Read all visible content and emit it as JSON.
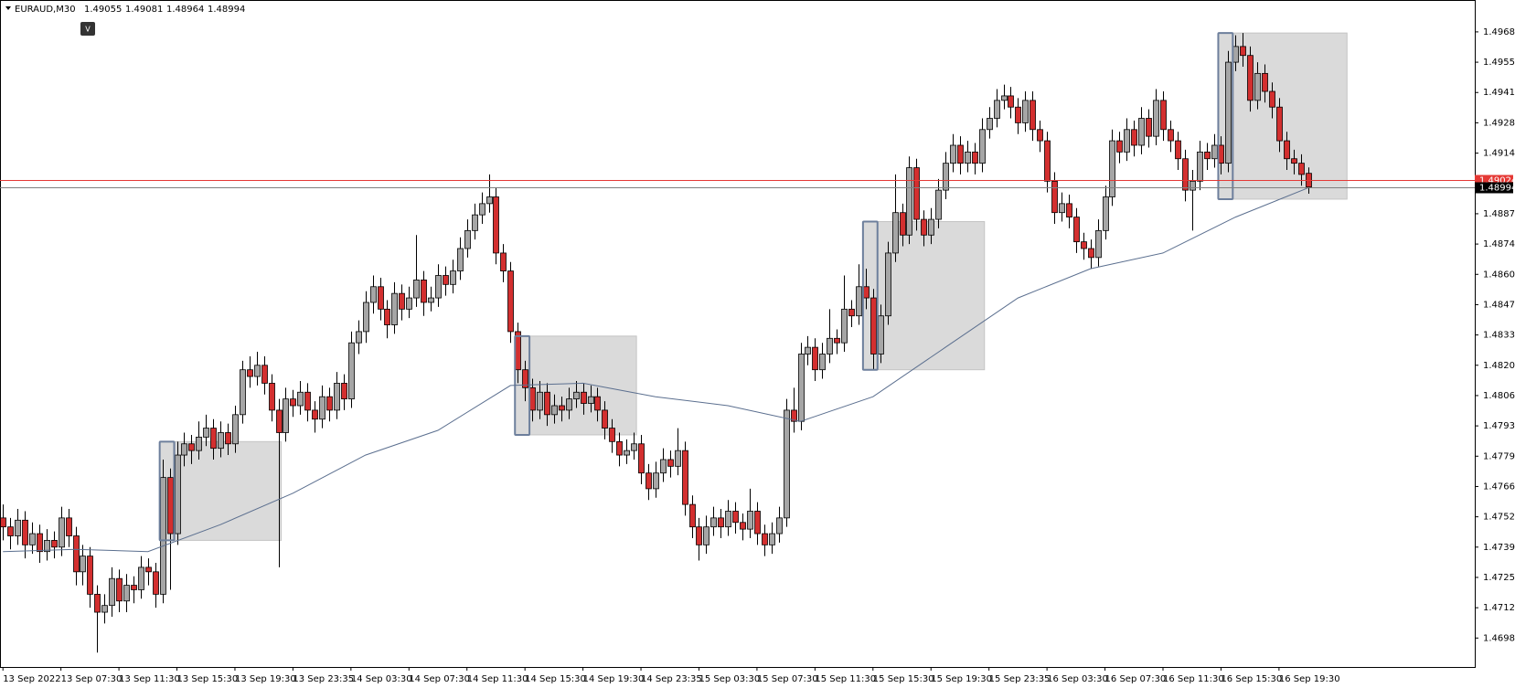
{
  "toolbar": {
    "button": "V"
  },
  "chart_data": {
    "type": "candlestick",
    "title": "EURAUD,M30",
    "ylim": [
      1.46856,
      1.49823
    ],
    "yticks": [
      1.49685,
      {
        "value": 1.4955,
        "label": "1.49550"
      },
      1.49415,
      {
        "value": 1.4928,
        "label": "1.49280"
      },
      1.49145,
      1.48875,
      {
        "value": 1.4874,
        "label": "1.48740"
      },
      1.48605,
      {
        "value": 1.4847,
        "label": "1.48470"
      },
      1.48335,
      {
        "value": 1.482,
        "label": "1.48200"
      },
      1.48065,
      {
        "value": 1.4793,
        "label": "1.47930"
      },
      1.47795,
      {
        "value": 1.4766,
        "label": "1.47660"
      },
      1.47525,
      {
        "value": 1.4739,
        "label": "1.47390"
      },
      1.47255,
      {
        "value": 1.4712,
        "label": "1.47120"
      },
      1.46985
    ],
    "xticks": [
      {
        "value": 0,
        "label": "13 Sep 2022"
      },
      {
        "value": 8,
        "label": "13 Sep 07:30"
      },
      {
        "value": 16,
        "label": "13 Sep 11:30"
      },
      {
        "value": 24,
        "label": "13 Sep 15:30"
      },
      {
        "value": 32,
        "label": "13 Sep 19:30"
      },
      {
        "value": 40,
        "label": "13 Sep 23:35"
      },
      {
        "value": 48,
        "label": "14 Sep 03:30"
      },
      {
        "value": 56,
        "label": "14 Sep 07:30"
      },
      {
        "value": 64,
        "label": "14 Sep 11:30"
      },
      {
        "value": 72,
        "label": "14 Sep 15:30"
      },
      {
        "value": 80,
        "label": "14 Sep 19:30"
      },
      {
        "value": 88,
        "label": "14 Sep 23:35"
      },
      {
        "value": 96,
        "label": "15 Sep 03:30"
      },
      {
        "value": 104,
        "label": "15 Sep 07:30"
      },
      {
        "value": 112,
        "label": "15 Sep 11:30"
      },
      {
        "value": 120,
        "label": "15 Sep 15:30"
      },
      {
        "value": 128,
        "label": "15 Sep 19:30"
      },
      {
        "value": 136,
        "label": "15 Sep 23:35"
      },
      {
        "value": 144,
        "label": "16 Sep 03:30"
      },
      {
        "value": 152,
        "label": "16 Sep 07:30"
      },
      {
        "value": 160,
        "label": "16 Sep 11:30"
      },
      {
        "value": 168,
        "label": "16 Sep 15:30"
      },
      {
        "value": 176,
        "label": "16 Sep 19:30"
      }
    ],
    "up_color": "#a6a6a6",
    "down_color": "#d32f2f",
    "candles": [
      [
        1.4752,
        1.4758,
        1.4742,
        1.4748
      ],
      [
        1.4748,
        1.4752,
        1.4738,
        1.4744
      ],
      [
        1.4744,
        1.4756,
        1.474,
        1.4751
      ],
      [
        1.4751,
        1.4755,
        1.4734,
        1.474
      ],
      [
        1.474,
        1.475,
        1.4736,
        1.4745
      ],
      [
        1.4745,
        1.4749,
        1.4732,
        1.4737
      ],
      [
        1.4737,
        1.4747,
        1.4733,
        1.4742
      ],
      [
        1.4742,
        1.4746,
        1.4734,
        1.4739
      ],
      [
        1.4739,
        1.4757,
        1.4735,
        1.4752
      ],
      [
        1.4752,
        1.4756,
        1.4739,
        1.4744
      ],
      [
        1.4744,
        1.4748,
        1.4722,
        1.4728
      ],
      [
        1.4728,
        1.474,
        1.4722,
        1.4735
      ],
      [
        1.4735,
        1.4739,
        1.4712,
        1.4718
      ],
      [
        1.4718,
        1.4722,
        1.4692,
        1.471
      ],
      [
        1.471,
        1.4718,
        1.4705,
        1.4713
      ],
      [
        1.4713,
        1.473,
        1.4708,
        1.4725
      ],
      [
        1.4725,
        1.4729,
        1.471,
        1.4715
      ],
      [
        1.4715,
        1.4727,
        1.471,
        1.4722
      ],
      [
        1.4722,
        1.4726,
        1.4714,
        1.472
      ],
      [
        1.472,
        1.4735,
        1.4716,
        1.473
      ],
      [
        1.473,
        1.4734,
        1.4722,
        1.4728
      ],
      [
        1.4728,
        1.4732,
        1.4712,
        1.4718
      ],
      [
        1.4718,
        1.4778,
        1.4714,
        1.477
      ],
      [
        1.477,
        1.4774,
        1.472,
        1.4745
      ],
      [
        1.4745,
        1.4786,
        1.474,
        1.478
      ],
      [
        1.478,
        1.479,
        1.4775,
        1.4785
      ],
      [
        1.4785,
        1.4789,
        1.4776,
        1.4782
      ],
      [
        1.4782,
        1.4795,
        1.4778,
        1.4788
      ],
      [
        1.4788,
        1.4798,
        1.4784,
        1.4792
      ],
      [
        1.4792,
        1.4796,
        1.4778,
        1.4783
      ],
      [
        1.4783,
        1.4795,
        1.4779,
        1.479
      ],
      [
        1.479,
        1.4794,
        1.478,
        1.4785
      ],
      [
        1.4785,
        1.4802,
        1.4781,
        1.4798
      ],
      [
        1.4798,
        1.4822,
        1.4794,
        1.4818
      ],
      [
        1.4818,
        1.4824,
        1.481,
        1.4815
      ],
      [
        1.4815,
        1.4826,
        1.4811,
        1.482
      ],
      [
        1.482,
        1.4824,
        1.4807,
        1.4812
      ],
      [
        1.4812,
        1.4816,
        1.4795,
        1.48
      ],
      [
        1.48,
        1.4805,
        1.473,
        1.479
      ],
      [
        1.479,
        1.481,
        1.4786,
        1.4805
      ],
      [
        1.4805,
        1.4809,
        1.4797,
        1.4802
      ],
      [
        1.4802,
        1.4813,
        1.4798,
        1.4808
      ],
      [
        1.4808,
        1.4812,
        1.4795,
        1.48
      ],
      [
        1.48,
        1.4804,
        1.479,
        1.4796
      ],
      [
        1.4796,
        1.4811,
        1.4792,
        1.4806
      ],
      [
        1.4806,
        1.481,
        1.4795,
        1.48
      ],
      [
        1.48,
        1.4817,
        1.4796,
        1.4812
      ],
      [
        1.4812,
        1.4816,
        1.48,
        1.4805
      ],
      [
        1.4805,
        1.4835,
        1.4801,
        1.483
      ],
      [
        1.483,
        1.484,
        1.4825,
        1.4835
      ],
      [
        1.4835,
        1.4853,
        1.483,
        1.4848
      ],
      [
        1.4848,
        1.486,
        1.4843,
        1.4855
      ],
      [
        1.4855,
        1.4859,
        1.484,
        1.4845
      ],
      [
        1.4845,
        1.4849,
        1.4832,
        1.4838
      ],
      [
        1.4838,
        1.4857,
        1.4834,
        1.4852
      ],
      [
        1.4852,
        1.4856,
        1.484,
        1.4845
      ],
      [
        1.4845,
        1.4855,
        1.4841,
        1.485
      ],
      [
        1.485,
        1.4878,
        1.4846,
        1.4858
      ],
      [
        1.4858,
        1.4862,
        1.4842,
        1.4848
      ],
      [
        1.4848,
        1.4855,
        1.4844,
        1.485
      ],
      [
        1.485,
        1.4865,
        1.4846,
        1.486
      ],
      [
        1.486,
        1.4864,
        1.4851,
        1.4856
      ],
      [
        1.4856,
        1.4867,
        1.4852,
        1.4862
      ],
      [
        1.4862,
        1.4877,
        1.4858,
        1.4872
      ],
      [
        1.4872,
        1.4885,
        1.4868,
        1.488
      ],
      [
        1.488,
        1.4892,
        1.4876,
        1.4887
      ],
      [
        1.4887,
        1.4897,
        1.4883,
        1.4892
      ],
      [
        1.4892,
        1.4905,
        1.4888,
        1.4895
      ],
      [
        1.4895,
        1.4899,
        1.4865,
        1.487
      ],
      [
        1.487,
        1.4874,
        1.4857,
        1.4862
      ],
      [
        1.4862,
        1.4866,
        1.483,
        1.4835
      ],
      [
        1.4835,
        1.4839,
        1.4812,
        1.4818
      ],
      [
        1.4818,
        1.4822,
        1.4804,
        1.481
      ],
      [
        1.481,
        1.4814,
        1.4795,
        1.48
      ],
      [
        1.48,
        1.4813,
        1.4796,
        1.4808
      ],
      [
        1.4808,
        1.4812,
        1.4793,
        1.4798
      ],
      [
        1.4798,
        1.4807,
        1.4794,
        1.4802
      ],
      [
        1.4802,
        1.4806,
        1.4795,
        1.48
      ],
      [
        1.48,
        1.481,
        1.4796,
        1.4805
      ],
      [
        1.4805,
        1.4813,
        1.4801,
        1.4808
      ],
      [
        1.4808,
        1.4812,
        1.4798,
        1.4803
      ],
      [
        1.4803,
        1.4811,
        1.4799,
        1.4806
      ],
      [
        1.4806,
        1.481,
        1.4795,
        1.48
      ],
      [
        1.48,
        1.4804,
        1.4787,
        1.4792
      ],
      [
        1.4792,
        1.4796,
        1.4781,
        1.4786
      ],
      [
        1.4786,
        1.479,
        1.4775,
        1.478
      ],
      [
        1.478,
        1.4787,
        1.4776,
        1.4782
      ],
      [
        1.4782,
        1.479,
        1.4778,
        1.4785
      ],
      [
        1.4785,
        1.4789,
        1.4767,
        1.4772
      ],
      [
        1.4772,
        1.4776,
        1.476,
        1.4765
      ],
      [
        1.4765,
        1.4777,
        1.4761,
        1.4772
      ],
      [
        1.4772,
        1.4783,
        1.4768,
        1.4778
      ],
      [
        1.4778,
        1.4782,
        1.477,
        1.4775
      ],
      [
        1.4775,
        1.4792,
        1.4771,
        1.4782
      ],
      [
        1.4782,
        1.4786,
        1.4753,
        1.4758
      ],
      [
        1.4758,
        1.4762,
        1.4743,
        1.4748
      ],
      [
        1.4748,
        1.4752,
        1.4733,
        1.474
      ],
      [
        1.474,
        1.4753,
        1.4736,
        1.4748
      ],
      [
        1.4748,
        1.4757,
        1.4744,
        1.4752
      ],
      [
        1.4752,
        1.4756,
        1.4743,
        1.4748
      ],
      [
        1.4748,
        1.476,
        1.4744,
        1.4755
      ],
      [
        1.4755,
        1.4759,
        1.4745,
        1.475
      ],
      [
        1.475,
        1.4754,
        1.4742,
        1.4747
      ],
      [
        1.4747,
        1.4765,
        1.4743,
        1.4755
      ],
      [
        1.4755,
        1.4759,
        1.474,
        1.4745
      ],
      [
        1.4745,
        1.4749,
        1.4735,
        1.474
      ],
      [
        1.474,
        1.475,
        1.4736,
        1.4745
      ],
      [
        1.4745,
        1.4757,
        1.4741,
        1.4752
      ],
      [
        1.4752,
        1.4805,
        1.4748,
        1.48
      ],
      [
        1.48,
        1.481,
        1.479,
        1.4795
      ],
      [
        1.4795,
        1.483,
        1.4791,
        1.4825
      ],
      [
        1.4825,
        1.4833,
        1.482,
        1.4828
      ],
      [
        1.4828,
        1.4832,
        1.4813,
        1.4818
      ],
      [
        1.4818,
        1.483,
        1.4814,
        1.4825
      ],
      [
        1.4825,
        1.4845,
        1.4821,
        1.4832
      ],
      [
        1.4832,
        1.4836,
        1.4825,
        1.483
      ],
      [
        1.483,
        1.486,
        1.4826,
        1.4845
      ],
      [
        1.4845,
        1.4849,
        1.4837,
        1.4842
      ],
      [
        1.4842,
        1.4865,
        1.4838,
        1.4855
      ],
      [
        1.4855,
        1.4863,
        1.4845,
        1.485
      ],
      [
        1.485,
        1.4854,
        1.4818,
        1.4825
      ],
      [
        1.4825,
        1.4847,
        1.4821,
        1.4842
      ],
      [
        1.4842,
        1.4875,
        1.4838,
        1.487
      ],
      [
        1.487,
        1.4905,
        1.4866,
        1.4888
      ],
      [
        1.4888,
        1.4892,
        1.4873,
        1.4878
      ],
      [
        1.4878,
        1.4913,
        1.4874,
        1.4908
      ],
      [
        1.4908,
        1.4912,
        1.488,
        1.4885
      ],
      [
        1.4885,
        1.4889,
        1.4873,
        1.4878
      ],
      [
        1.4878,
        1.489,
        1.4874,
        1.4885
      ],
      [
        1.4885,
        1.4903,
        1.4881,
        1.4898
      ],
      [
        1.4898,
        1.4915,
        1.4894,
        1.491
      ],
      [
        1.491,
        1.4923,
        1.4906,
        1.4918
      ],
      [
        1.4918,
        1.4922,
        1.4905,
        1.491
      ],
      [
        1.491,
        1.492,
        1.4906,
        1.4915
      ],
      [
        1.4915,
        1.4919,
        1.4905,
        1.491
      ],
      [
        1.491,
        1.493,
        1.4906,
        1.4925
      ],
      [
        1.4925,
        1.4935,
        1.4921,
        1.493
      ],
      [
        1.493,
        1.4943,
        1.4926,
        1.4938
      ],
      [
        1.4938,
        1.4945,
        1.4934,
        1.494
      ],
      [
        1.494,
        1.4944,
        1.493,
        1.4935
      ],
      [
        1.4935,
        1.4939,
        1.4923,
        1.4928
      ],
      [
        1.4928,
        1.4942,
        1.4924,
        1.4938
      ],
      [
        1.4938,
        1.4942,
        1.492,
        1.4925
      ],
      [
        1.4925,
        1.4929,
        1.4915,
        1.492
      ],
      [
        1.492,
        1.4924,
        1.4897,
        1.4902
      ],
      [
        1.4902,
        1.4906,
        1.4883,
        1.4888
      ],
      [
        1.4888,
        1.4897,
        1.4884,
        1.4892
      ],
      [
        1.4892,
        1.4896,
        1.4881,
        1.4886
      ],
      [
        1.4886,
        1.489,
        1.487,
        1.4875
      ],
      [
        1.4875,
        1.4879,
        1.4867,
        1.4872
      ],
      [
        1.4872,
        1.4876,
        1.4863,
        1.4868
      ],
      [
        1.4868,
        1.4885,
        1.4864,
        1.488
      ],
      [
        1.488,
        1.49,
        1.4876,
        1.4895
      ],
      [
        1.4895,
        1.4925,
        1.4891,
        1.492
      ],
      [
        1.492,
        1.4924,
        1.491,
        1.4915
      ],
      [
        1.4915,
        1.493,
        1.4911,
        1.4925
      ],
      [
        1.4925,
        1.4929,
        1.4913,
        1.4918
      ],
      [
        1.4918,
        1.4935,
        1.4914,
        1.493
      ],
      [
        1.493,
        1.4934,
        1.4917,
        1.4922
      ],
      [
        1.4922,
        1.4943,
        1.4918,
        1.4938
      ],
      [
        1.4938,
        1.4942,
        1.492,
        1.4925
      ],
      [
        1.4925,
        1.4929,
        1.4915,
        1.492
      ],
      [
        1.492,
        1.4924,
        1.4907,
        1.4912
      ],
      [
        1.4912,
        1.4916,
        1.4893,
        1.4898
      ],
      [
        1.4898,
        1.4907,
        1.488,
        1.4902
      ],
      [
        1.4902,
        1.492,
        1.4898,
        1.4915
      ],
      [
        1.4915,
        1.4919,
        1.4907,
        1.4912
      ],
      [
        1.4912,
        1.4923,
        1.4908,
        1.4918
      ],
      [
        1.4918,
        1.4922,
        1.4905,
        1.491
      ],
      [
        1.491,
        1.496,
        1.4906,
        1.4955
      ],
      [
        1.4955,
        1.4967,
        1.4951,
        1.4962
      ],
      [
        1.4962,
        1.4968,
        1.4953,
        1.4958
      ],
      [
        1.4958,
        1.4962,
        1.4933,
        1.4938
      ],
      [
        1.4938,
        1.4955,
        1.4934,
        1.495
      ],
      [
        1.495,
        1.4954,
        1.4937,
        1.4942
      ],
      [
        1.4942,
        1.4946,
        1.493,
        1.4935
      ],
      [
        1.4935,
        1.4939,
        1.4915,
        1.492
      ],
      [
        1.492,
        1.4924,
        1.4907,
        1.4912
      ],
      [
        1.4912,
        1.4916,
        1.4905,
        1.491
      ],
      [
        1.491,
        1.4914,
        1.49,
        1.4905
      ],
      [
        1.49055,
        1.49081,
        1.48964,
        1.48994
      ]
    ],
    "ma": {
      "color": "#5b6f8f",
      "x": [
        0,
        10,
        20,
        30,
        40,
        50,
        60,
        70,
        80,
        90,
        100,
        110,
        120,
        130,
        140,
        150,
        160,
        170,
        180
      ],
      "values": [
        1.4737,
        1.4738,
        1.4737,
        1.4749,
        1.4763,
        1.478,
        1.4791,
        1.4811,
        1.4812,
        1.4806,
        1.4802,
        1.4795,
        1.4806,
        1.4828,
        1.485,
        1.4863,
        1.487,
        1.4886,
        1.4899
      ]
    },
    "zones": [
      {
        "start": 22,
        "end": 38,
        "top": 1.4786,
        "bottom": 1.4742
      },
      {
        "start": 71,
        "end": 87,
        "top": 1.4833,
        "bottom": 1.4789
      },
      {
        "start": 119,
        "end": 135,
        "top": 1.4884,
        "bottom": 1.4818
      },
      {
        "start": 168,
        "end": 185,
        "top": 1.4968,
        "bottom": 1.4894
      }
    ],
    "price_lines": [
      {
        "value": 1.49024,
        "color": "#e53935"
      },
      {
        "value": 1.48994,
        "color": "#7f7f7f"
      }
    ]
  }
}
